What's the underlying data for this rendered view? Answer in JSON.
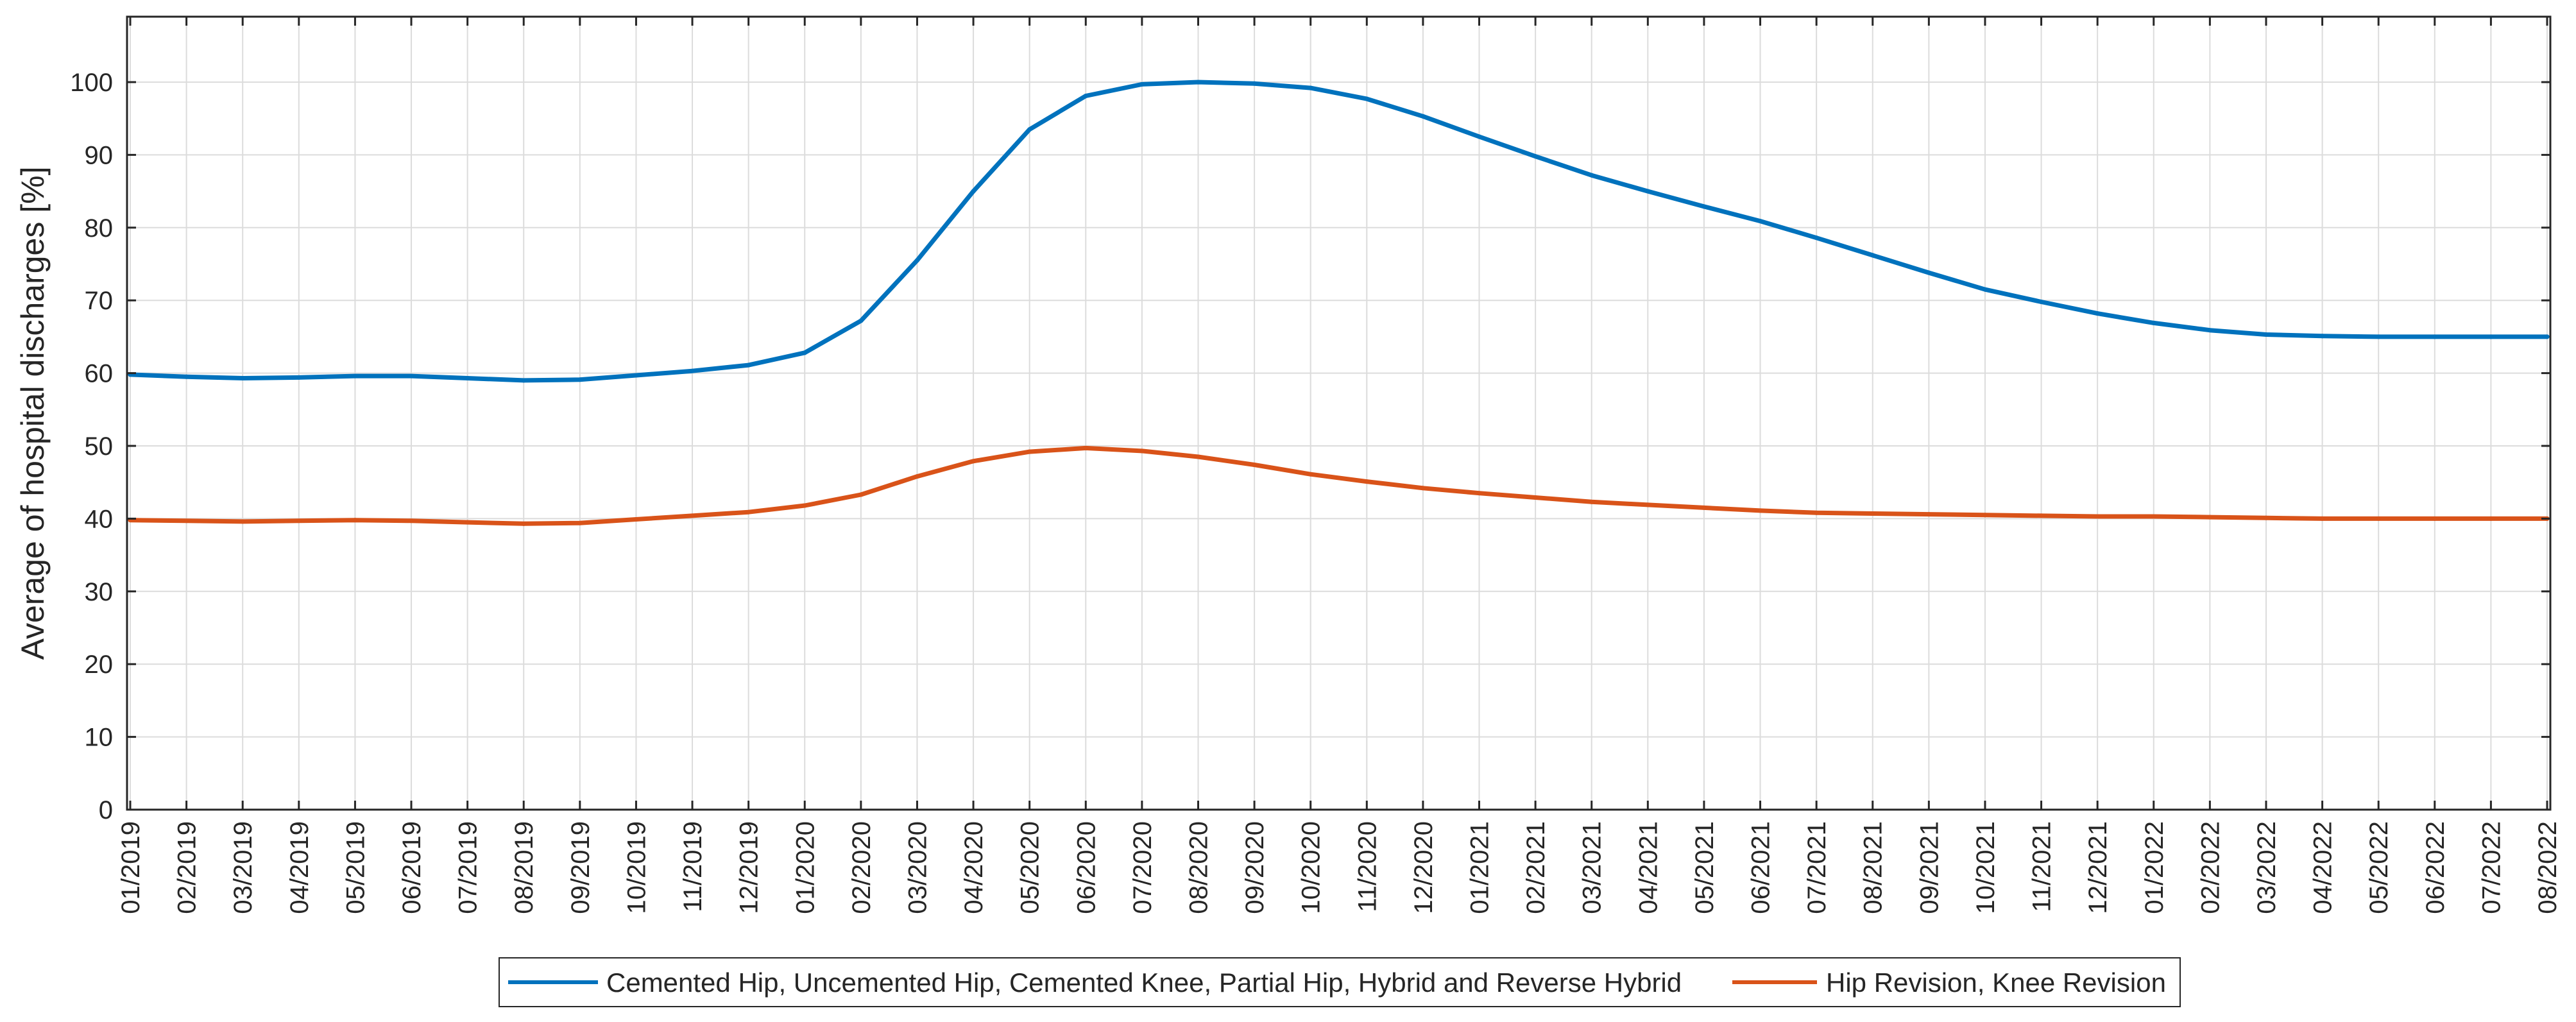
{
  "chart_data": {
    "type": "line",
    "ylabel": "Average of hospital discharges [%]",
    "xlabel": "",
    "ylim": [
      0,
      100
    ],
    "yticks": [
      0,
      10,
      20,
      30,
      40,
      50,
      60,
      70,
      80,
      90,
      100
    ],
    "grid": true,
    "legend_position": "bottom",
    "x": [
      "01/2019",
      "02/2019",
      "03/2019",
      "04/2019",
      "05/2019",
      "06/2019",
      "07/2019",
      "08/2019",
      "09/2019",
      "10/2019",
      "11/2019",
      "12/2019",
      "01/2020",
      "02/2020",
      "03/2020",
      "04/2020",
      "05/2020",
      "06/2020",
      "07/2020",
      "08/2020",
      "09/2020",
      "10/2020",
      "11/2020",
      "12/2020",
      "01/2021",
      "02/2021",
      "03/2021",
      "04/2021",
      "05/2021",
      "06/2021",
      "07/2021",
      "08/2021",
      "09/2021",
      "10/2021",
      "11/2021",
      "12/2021",
      "01/2022",
      "02/2022",
      "03/2022",
      "04/2022",
      "05/2022",
      "06/2022",
      "07/2022",
      "08/2022"
    ],
    "series": [
      {
        "name": "Cemented Hip, Uncemented Hip, Cemented Knee, Partial Hip, Hybrid and Reverse Hybrid",
        "color": "#0072BD",
        "values": [
          59.8,
          59.5,
          59.3,
          59.4,
          59.6,
          59.6,
          59.3,
          59.0,
          59.1,
          59.7,
          60.3,
          61.1,
          62.8,
          67.2,
          75.5,
          85.0,
          93.5,
          98.1,
          99.7,
          100.0,
          99.8,
          99.2,
          97.7,
          95.3,
          92.5,
          89.8,
          87.2,
          85.0,
          82.9,
          80.9,
          78.6,
          76.2,
          73.8,
          71.5,
          69.8,
          68.2,
          66.9,
          65.9,
          65.3,
          65.1,
          65.0,
          65.0,
          65.0,
          65.0
        ]
      },
      {
        "name": "Hip Revision, Knee Revision",
        "color": "#D95319",
        "values": [
          39.8,
          39.7,
          39.6,
          39.7,
          39.8,
          39.7,
          39.5,
          39.3,
          39.4,
          39.9,
          40.4,
          40.9,
          41.8,
          43.3,
          45.8,
          47.9,
          49.2,
          49.7,
          49.3,
          48.5,
          47.4,
          46.1,
          45.1,
          44.2,
          43.5,
          42.9,
          42.3,
          41.9,
          41.5,
          41.1,
          40.8,
          40.7,
          40.6,
          40.5,
          40.4,
          40.3,
          40.3,
          40.2,
          40.1,
          40.0,
          40.0,
          40.0,
          40.0,
          40.0
        ]
      }
    ]
  }
}
